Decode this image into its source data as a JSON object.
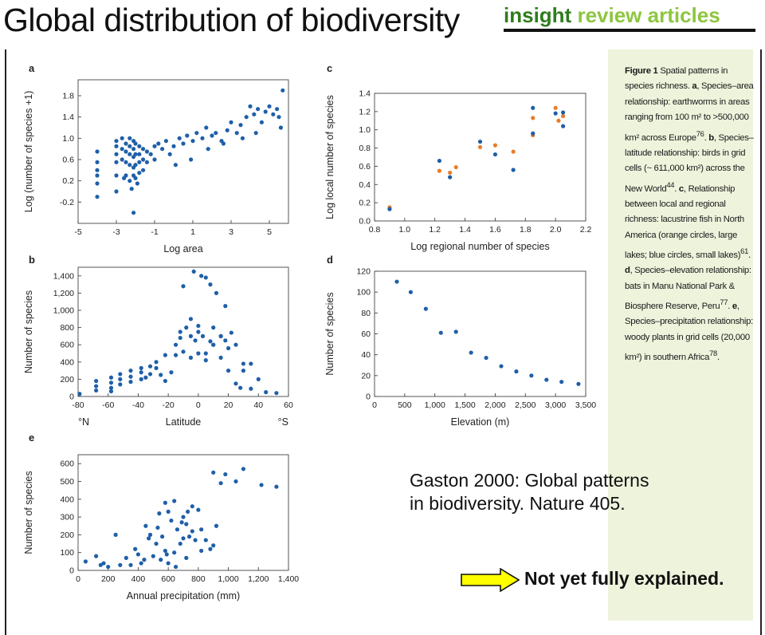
{
  "slide": {
    "title": "Global distribution of biodiversity",
    "brand_part1": "insight",
    "brand_part2": "review articles",
    "citation_line1": "Gaston 2000: Global patterns",
    "citation_line2": "in biodiversity. Nature 405.",
    "note": "Not yet fully explained.",
    "colors": {
      "dot_blue": "#1f5fa8",
      "dot_orange": "#e87d2a",
      "panel_bg": "#eef3dc",
      "arrow_fill": "#ffff00"
    }
  },
  "caption": {
    "lead": "Figure 1",
    "text1": " Spatial patterns in species richness. ",
    "a": "a",
    "text2": ", Species–area relationship: earthworms in areas ranging from 100 m² to >500,000 km² across Europe",
    "ref76": "76",
    "text3": ". ",
    "b": "b",
    "text4": ", Species–latitude relationship: birds in grid cells (~ 611,000 km²) across the New World",
    "ref44": "44",
    "text5": ". ",
    "c": "c",
    "text6": ", Relationship between local and regional richness: lacustrine fish in North America (orange circles, large lakes; blue circles, small lakes)",
    "ref61": "61",
    "text7": ". ",
    "d": "d",
    "text8": ", Species–elevation relationship: bats in Manu National Park & Biosphere Reserve, Peru",
    "ref77": "77",
    "text9": ". ",
    "e": "e",
    "text10": ", Species–precipitation relationship: woody plants in grid cells (20,000 km²) in southern Africa",
    "ref78": "78",
    "text11": "."
  },
  "chart_data": [
    {
      "panel": "a",
      "type": "scatter",
      "xlabel": "Log area",
      "ylabel": "Log (number of species +1)",
      "xlim": [
        -5,
        6
      ],
      "ylim": [
        -0.6,
        2.1
      ],
      "xticks": [
        "-5",
        "-3",
        "-1",
        "1",
        "3",
        "5"
      ],
      "yticks": [
        "-0.2",
        "0.2",
        "0.6",
        "1.0",
        "1.4",
        "1.8"
      ],
      "xtick_values": [
        -5,
        -3,
        -1,
        1,
        3,
        5
      ],
      "ytick_values": [
        -0.2,
        0.2,
        0.6,
        1.0,
        1.4,
        1.8
      ],
      "series": [
        {
          "name": "earthworms",
          "color": "#1f5fa8",
          "x": [
            -4,
            -4,
            -4,
            -4,
            -4,
            -4,
            -3,
            -3,
            -3,
            -3,
            -3,
            -3,
            -2.7,
            -2.7,
            -2.7,
            -2.5,
            -2.5,
            -2.5,
            -2.5,
            -2.3,
            -2.3,
            -2.3,
            -2.3,
            -2.3,
            -2.1,
            -2.1,
            -2.1,
            -2.1,
            -2.1,
            -2.1,
            -2,
            -2,
            -2,
            -2,
            -1.8,
            -1.8,
            -1.8,
            -1.8,
            -1.6,
            -1.6,
            -1.6,
            -1.4,
            -1.4,
            -1.2,
            -1,
            -1,
            -0.8,
            -0.6,
            -0.4,
            -0.2,
            0,
            0.3,
            0.5,
            0.7,
            1,
            1.2,
            1.5,
            1.7,
            2,
            2.2,
            2.5,
            2.8,
            3,
            3.3,
            3.5,
            3.8,
            4,
            4.2,
            4.4,
            4.6,
            4.8,
            5,
            5.2,
            5.4,
            5.5,
            5.6,
            5.7,
            -2.2,
            -1.9,
            -2.6,
            0.1,
            0.9,
            1.8,
            2.6,
            3.6,
            4.3
          ],
          "y": [
            0.75,
            0.55,
            0.4,
            0.3,
            0.15,
            -0.1,
            0.95,
            0.85,
            0.7,
            0.55,
            0.3,
            0,
            1.0,
            0.8,
            0.6,
            0.9,
            0.75,
            0.55,
            0.3,
            1.0,
            0.85,
            0.7,
            0.5,
            0.2,
            0.95,
            0.8,
            0.65,
            0.45,
            0.3,
            -0.4,
            0.9,
            0.7,
            0.5,
            0.25,
            0.85,
            0.7,
            0.55,
            0.35,
            0.8,
            0.6,
            0.4,
            0.75,
            0.55,
            0.7,
            0.85,
            0.6,
            0.9,
            0.8,
            0.95,
            0.7,
            0.85,
            1.0,
            0.9,
            1.05,
            0.95,
            1.1,
            1.0,
            1.2,
            1.05,
            1.1,
            0.95,
            1.15,
            1.3,
            1.1,
            1.25,
            1.4,
            1.6,
            1.45,
            1.55,
            1.3,
            1.5,
            1.6,
            1.45,
            1.55,
            1.4,
            1.2,
            1.9,
            0.05,
            0.15,
            0.25,
            0.5,
            0.6,
            0.8,
            0.9,
            1.0,
            1.1
          ]
        }
      ]
    },
    {
      "panel": "b",
      "type": "scatter",
      "xlabel": "Latitude",
      "xlabel_left": "°N",
      "xlabel_right": "°S",
      "ylabel": "Number of species",
      "xlim": [
        -80,
        60
      ],
      "ylim": [
        0,
        1500
      ],
      "xticks": [
        "-80",
        "-60",
        "-40",
        "-20",
        "0",
        "20",
        "40",
        "60"
      ],
      "yticks": [
        "0",
        "200",
        "400",
        "600",
        "800",
        "1,000",
        "1,200",
        "1,400"
      ],
      "xtick_values": [
        -80,
        -60,
        -40,
        -20,
        0,
        20,
        40,
        60
      ],
      "ytick_values": [
        0,
        200,
        400,
        600,
        800,
        1000,
        1200,
        1400
      ],
      "series": [
        {
          "name": "birds",
          "color": "#1f5fa8",
          "x": [
            -79,
            -68,
            -68,
            -68,
            -58,
            -58,
            -58,
            -58,
            -52,
            -52,
            -52,
            -45,
            -45,
            -45,
            -38,
            -38,
            -38,
            -32,
            -32,
            -28,
            -28,
            -22,
            -22,
            -18,
            -15,
            -12,
            -10,
            -8,
            -5,
            -5,
            -3,
            -2,
            0,
            0,
            2,
            3,
            5,
            5,
            8,
            10,
            10,
            12,
            15,
            15,
            18,
            18,
            20,
            22,
            25,
            25,
            28,
            30,
            35,
            35,
            40,
            45,
            52,
            -10,
            -5,
            5,
            10,
            -15,
            0,
            20,
            30,
            -25,
            -35,
            -12,
            8,
            15
          ],
          "y": [
            30,
            180,
            120,
            70,
            220,
            160,
            100,
            60,
            260,
            200,
            140,
            300,
            230,
            170,
            330,
            280,
            200,
            350,
            260,
            400,
            330,
            480,
            180,
            280,
            600,
            750,
            520,
            800,
            900,
            700,
            1450,
            650,
            820,
            750,
            1400,
            700,
            1380,
            500,
            1300,
            800,
            600,
            1200,
            700,
            450,
            1050,
            650,
            300,
            740,
            150,
            600,
            100,
            380,
            380,
            90,
            200,
            50,
            40,
            1280,
            450,
            420,
            600,
            480,
            500,
            560,
            300,
            250,
            220,
            680,
            640,
            700
          ]
        }
      ]
    },
    {
      "panel": "c",
      "type": "scatter",
      "xlabel": "Log regional number of species",
      "ylabel": "Log local number of species",
      "xlim": [
        0.8,
        2.2
      ],
      "ylim": [
        0,
        1.4
      ],
      "xticks": [
        "0.8",
        "1.0",
        "1.2",
        "1.4",
        "1.6",
        "1.8",
        "2.0",
        "2.2"
      ],
      "yticks": [
        "0.0",
        "0.2",
        "0.4",
        "0.6",
        "0.8",
        "1.0",
        "1.2",
        "1.4"
      ],
      "xtick_values": [
        0.8,
        1.0,
        1.2,
        1.4,
        1.6,
        1.8,
        2.0,
        2.2
      ],
      "ytick_values": [
        0,
        0.2,
        0.4,
        0.6,
        0.8,
        1.0,
        1.2,
        1.4
      ],
      "series": [
        {
          "name": "large lakes",
          "color": "#e87d2a",
          "x": [
            0.9,
            1.23,
            1.3,
            1.34,
            1.5,
            1.6,
            1.72,
            1.85,
            1.85,
            2.0,
            2.02,
            2.05
          ],
          "y": [
            0.15,
            0.55,
            0.53,
            0.59,
            0.81,
            0.83,
            0.76,
            1.13,
            0.94,
            1.24,
            1.1,
            1.15
          ]
        },
        {
          "name": "small lakes",
          "color": "#1f5fa8",
          "x": [
            0.9,
            1.23,
            1.3,
            1.5,
            1.6,
            1.72,
            1.85,
            1.85,
            2.0,
            2.05,
            2.05
          ],
          "y": [
            0.13,
            0.66,
            0.48,
            0.87,
            0.73,
            0.56,
            1.24,
            0.96,
            1.18,
            1.19,
            1.04
          ]
        }
      ]
    },
    {
      "panel": "d",
      "type": "scatter",
      "xlabel": "Elevation (m)",
      "ylabel": "Number of species",
      "xlim": [
        0,
        3500
      ],
      "ylim": [
        0,
        120
      ],
      "xticks": [
        "0",
        "500",
        "1,000",
        "1,500",
        "2,000",
        "2,500",
        "3,000",
        "3,500"
      ],
      "yticks": [
        "0",
        "20",
        "40",
        "60",
        "80",
        "100",
        "120"
      ],
      "xtick_values": [
        0,
        500,
        1000,
        1500,
        2000,
        2500,
        3000,
        3500
      ],
      "ytick_values": [
        0,
        20,
        40,
        60,
        80,
        100,
        120
      ],
      "series": [
        {
          "name": "bats",
          "color": "#1f5fa8",
          "x": [
            370,
            600,
            850,
            1100,
            1350,
            1600,
            1850,
            2100,
            2350,
            2600,
            2850,
            3100,
            3380
          ],
          "y": [
            110,
            100,
            84,
            61,
            62,
            42,
            37,
            29,
            24,
            20,
            16,
            14,
            12
          ]
        }
      ]
    },
    {
      "panel": "e",
      "type": "scatter",
      "xlabel": "Annual precipitation (mm)",
      "ylabel": "Number of species",
      "xlim": [
        0,
        1400
      ],
      "ylim": [
        0,
        650
      ],
      "xticks": [
        "0",
        "200",
        "400",
        "600",
        "800",
        "1,000",
        "1,200",
        "1,400"
      ],
      "yticks": [
        "0",
        "100",
        "200",
        "300",
        "400",
        "500",
        "600"
      ],
      "xtick_values": [
        0,
        200,
        400,
        600,
        800,
        1000,
        1200,
        1400
      ],
      "ytick_values": [
        0,
        100,
        200,
        300,
        400,
        500,
        600
      ],
      "series": [
        {
          "name": "woody plants",
          "color": "#1f5fa8",
          "x": [
            50,
            120,
            150,
            170,
            200,
            250,
            280,
            320,
            350,
            380,
            400,
            420,
            440,
            450,
            470,
            500,
            520,
            540,
            550,
            560,
            580,
            590,
            600,
            620,
            640,
            650,
            660,
            680,
            700,
            720,
            730,
            740,
            760,
            780,
            800,
            820,
            850,
            880,
            900,
            920,
            950,
            980,
            1050,
            1100,
            1220,
            1320,
            600,
            700,
            480,
            530,
            640,
            760,
            820,
            580,
            690,
            720,
            900
          ],
          "y": [
            50,
            80,
            30,
            40,
            20,
            200,
            30,
            70,
            30,
            120,
            90,
            40,
            60,
            250,
            180,
            80,
            150,
            320,
            60,
            190,
            380,
            90,
            40,
            280,
            390,
            20,
            230,
            150,
            300,
            70,
            330,
            190,
            360,
            170,
            340,
            230,
            170,
            120,
            550,
            250,
            490,
            540,
            500,
            570,
            480,
            470,
            330,
            180,
            200,
            240,
            100,
            220,
            110,
            110,
            270,
            260,
            140
          ]
        }
      ]
    }
  ]
}
